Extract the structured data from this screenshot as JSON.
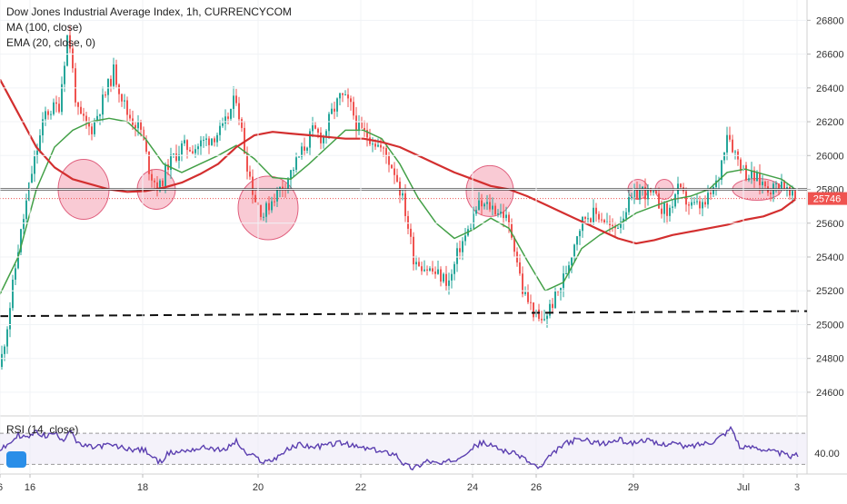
{
  "legend": {
    "title": "Dow Jones Industrial Average Index, 1h, CURRENCYCOM",
    "ma": "MA (100, close)",
    "ema": "EMA (20, close, 0)",
    "rsi": "RSI (14, close)"
  },
  "colors": {
    "up": "#26a69a",
    "down": "#ef5350",
    "ema": "#43a047",
    "ma": "#d32f2f",
    "rsi": "#5b3fb0",
    "circle_fill": "#f7b8c6",
    "circle_stroke": "#e0607e",
    "resistance": "#333333",
    "support": "#111111",
    "price_tag": "#ef5350"
  },
  "price_tag": "25746",
  "rsi_tick": "40.00",
  "chart_data": {
    "type": "candlestick",
    "title": "Dow Jones Industrial Average Index, 1h, CURRENCYCOM",
    "ylim": [
      24460,
      26920
    ],
    "y_ticks": [
      "24600",
      "24800",
      "25000",
      "25200",
      "25400",
      "25600",
      "25800",
      "26000",
      "26200",
      "26400",
      "26600",
      "26800"
    ],
    "x_ticks": [
      "16",
      "18",
      "20",
      "22",
      "24",
      "26",
      "29",
      "Jul",
      "3",
      "6"
    ],
    "approx_close_path": [
      [
        0,
        24750
      ],
      [
        8,
        25000
      ],
      [
        20,
        25450
      ],
      [
        35,
        25900
      ],
      [
        50,
        26250
      ],
      [
        65,
        26300
      ],
      [
        75,
        26750
      ],
      [
        85,
        26250
      ],
      [
        100,
        26150
      ],
      [
        115,
        26350
      ],
      [
        125,
        26500
      ],
      [
        140,
        26250
      ],
      [
        155,
        26150
      ],
      [
        165,
        25900
      ],
      [
        175,
        25800
      ],
      [
        185,
        25950
      ],
      [
        200,
        26050
      ],
      [
        215,
        26050
      ],
      [
        230,
        26100
      ],
      [
        245,
        26150
      ],
      [
        260,
        26350
      ],
      [
        270,
        26000
      ],
      [
        280,
        25750
      ],
      [
        290,
        25650
      ],
      [
        300,
        25750
      ],
      [
        315,
        25850
      ],
      [
        330,
        26000
      ],
      [
        345,
        26150
      ],
      [
        355,
        26100
      ],
      [
        365,
        26250
      ],
      [
        375,
        26350
      ],
      [
        385,
        26300
      ],
      [
        395,
        26150
      ],
      [
        410,
        26100
      ],
      [
        425,
        26000
      ],
      [
        435,
        25900
      ],
      [
        445,
        25700
      ],
      [
        455,
        25400
      ],
      [
        465,
        25350
      ],
      [
        480,
        25300
      ],
      [
        495,
        25250
      ],
      [
        505,
        25450
      ],
      [
        515,
        25550
      ],
      [
        525,
        25700
      ],
      [
        540,
        25700
      ],
      [
        555,
        25650
      ],
      [
        565,
        25500
      ],
      [
        575,
        25200
      ],
      [
        585,
        25100
      ],
      [
        595,
        25000
      ],
      [
        605,
        25100
      ],
      [
        615,
        25200
      ],
      [
        625,
        25350
      ],
      [
        635,
        25550
      ],
      [
        645,
        25650
      ],
      [
        660,
        25650
      ],
      [
        675,
        25550
      ],
      [
        690,
        25700
      ],
      [
        705,
        25800
      ],
      [
        720,
        25750
      ],
      [
        735,
        25650
      ],
      [
        745,
        25800
      ],
      [
        760,
        25700
      ],
      [
        775,
        25700
      ],
      [
        790,
        25850
      ],
      [
        800,
        26150
      ],
      [
        810,
        26000
      ],
      [
        820,
        25900
      ],
      [
        835,
        25850
      ],
      [
        850,
        25800
      ],
      [
        860,
        25850
      ],
      [
        870,
        25746
      ]
    ],
    "series": [
      {
        "name": "EMA (20, close, 0)",
        "points": [
          [
            0,
            25180
          ],
          [
            20,
            25400
          ],
          [
            40,
            25800
          ],
          [
            60,
            26050
          ],
          [
            80,
            26150
          ],
          [
            100,
            26200
          ],
          [
            120,
            26220
          ],
          [
            140,
            26200
          ],
          [
            160,
            26100
          ],
          [
            180,
            25950
          ],
          [
            200,
            25900
          ],
          [
            220,
            25950
          ],
          [
            240,
            26000
          ],
          [
            260,
            26060
          ],
          [
            280,
            25980
          ],
          [
            300,
            25870
          ],
          [
            320,
            25860
          ],
          [
            340,
            25950
          ],
          [
            360,
            26050
          ],
          [
            380,
            26150
          ],
          [
            400,
            26150
          ],
          [
            420,
            26100
          ],
          [
            440,
            25950
          ],
          [
            460,
            25750
          ],
          [
            480,
            25600
          ],
          [
            500,
            25510
          ],
          [
            520,
            25560
          ],
          [
            540,
            25630
          ],
          [
            560,
            25570
          ],
          [
            580,
            25380
          ],
          [
            600,
            25200
          ],
          [
            620,
            25250
          ],
          [
            640,
            25450
          ],
          [
            660,
            25530
          ],
          [
            680,
            25590
          ],
          [
            700,
            25660
          ],
          [
            720,
            25700
          ],
          [
            740,
            25740
          ],
          [
            760,
            25760
          ],
          [
            780,
            25800
          ],
          [
            800,
            25900
          ],
          [
            820,
            25920
          ],
          [
            840,
            25890
          ],
          [
            860,
            25860
          ],
          [
            875,
            25800
          ]
        ]
      },
      {
        "name": "MA (100, close)",
        "points": [
          [
            0,
            26450
          ],
          [
            20,
            26250
          ],
          [
            40,
            26050
          ],
          [
            60,
            25930
          ],
          [
            80,
            25860
          ],
          [
            100,
            25830
          ],
          [
            120,
            25800
          ],
          [
            140,
            25785
          ],
          [
            160,
            25790
          ],
          [
            180,
            25810
          ],
          [
            200,
            25840
          ],
          [
            220,
            25890
          ],
          [
            240,
            25950
          ],
          [
            260,
            26050
          ],
          [
            280,
            26120
          ],
          [
            300,
            26140
          ],
          [
            320,
            26130
          ],
          [
            340,
            26120
          ],
          [
            360,
            26110
          ],
          [
            380,
            26100
          ],
          [
            400,
            26100
          ],
          [
            420,
            26080
          ],
          [
            440,
            26050
          ],
          [
            460,
            26000
          ],
          [
            480,
            25950
          ],
          [
            500,
            25900
          ],
          [
            520,
            25860
          ],
          [
            540,
            25820
          ],
          [
            560,
            25800
          ],
          [
            580,
            25760
          ],
          [
            600,
            25710
          ],
          [
            620,
            25660
          ],
          [
            640,
            25610
          ],
          [
            660,
            25560
          ],
          [
            680,
            25510
          ],
          [
            700,
            25480
          ],
          [
            720,
            25500
          ],
          [
            740,
            25530
          ],
          [
            760,
            25550
          ],
          [
            780,
            25570
          ],
          [
            800,
            25590
          ],
          [
            820,
            25620
          ],
          [
            840,
            25640
          ],
          [
            860,
            25680
          ],
          [
            875,
            25740
          ]
        ]
      }
    ],
    "horizontal_lines": [
      {
        "style": "solid",
        "value": 25800
      },
      {
        "style": "dashed",
        "start": 25050,
        "end": 25080
      },
      {
        "style": "dotted",
        "value": 25746
      }
    ],
    "highlight_circles": [
      {
        "x": 92,
        "y": 25800,
        "rx": 28,
        "ry": 33
      },
      {
        "x": 172,
        "y": 25800,
        "rx": 21,
        "ry": 22
      },
      {
        "x": 295,
        "y": 25690,
        "rx": 33,
        "ry": 35
      },
      {
        "x": 539,
        "y": 25790,
        "rx": 26,
        "ry": 28
      },
      {
        "x": 702,
        "y": 25800,
        "rx": 11,
        "ry": 11
      },
      {
        "x": 731,
        "y": 25800,
        "rx": 10,
        "ry": 11
      },
      {
        "x": 833,
        "y": 25800,
        "rx": 27,
        "ry": 12
      }
    ],
    "rsi": {
      "name": "RSI (14, close)",
      "ylim": [
        20,
        90
      ],
      "bands": [
        70,
        30
      ],
      "points": [
        [
          0,
          48
        ],
        [
          10,
          56
        ],
        [
          20,
          68
        ],
        [
          30,
          64
        ],
        [
          40,
          72
        ],
        [
          50,
          66
        ],
        [
          60,
          70
        ],
        [
          70,
          62
        ],
        [
          78,
          76
        ],
        [
          85,
          56
        ],
        [
          100,
          52
        ],
        [
          120,
          55
        ],
        [
          140,
          50
        ],
        [
          160,
          48
        ],
        [
          175,
          32
        ],
        [
          185,
          44
        ],
        [
          200,
          47
        ],
        [
          215,
          50
        ],
        [
          230,
          52
        ],
        [
          245,
          47
        ],
        [
          260,
          60
        ],
        [
          270,
          44
        ],
        [
          280,
          40
        ],
        [
          290,
          33
        ],
        [
          300,
          36
        ],
        [
          315,
          48
        ],
        [
          330,
          56
        ],
        [
          345,
          52
        ],
        [
          360,
          55
        ],
        [
          375,
          58
        ],
        [
          390,
          53
        ],
        [
          405,
          50
        ],
        [
          420,
          46
        ],
        [
          435,
          44
        ],
        [
          445,
          30
        ],
        [
          455,
          25
        ],
        [
          470,
          35
        ],
        [
          485,
          30
        ],
        [
          500,
          36
        ],
        [
          515,
          48
        ],
        [
          530,
          58
        ],
        [
          545,
          52
        ],
        [
          560,
          46
        ],
        [
          575,
          40
        ],
        [
          585,
          30
        ],
        [
          595,
          25
        ],
        [
          605,
          40
        ],
        [
          620,
          56
        ],
        [
          635,
          62
        ],
        [
          650,
          60
        ],
        [
          665,
          56
        ],
        [
          680,
          62
        ],
        [
          695,
          57
        ],
        [
          710,
          62
        ],
        [
          725,
          55
        ],
        [
          740,
          58
        ],
        [
          755,
          52
        ],
        [
          770,
          56
        ],
        [
          785,
          60
        ],
        [
          800,
          72
        ],
        [
          805,
          78
        ],
        [
          815,
          50
        ],
        [
          830,
          53
        ],
        [
          845,
          48
        ],
        [
          860,
          44
        ],
        [
          870,
          40
        ],
        [
          878,
          42
        ]
      ]
    }
  }
}
